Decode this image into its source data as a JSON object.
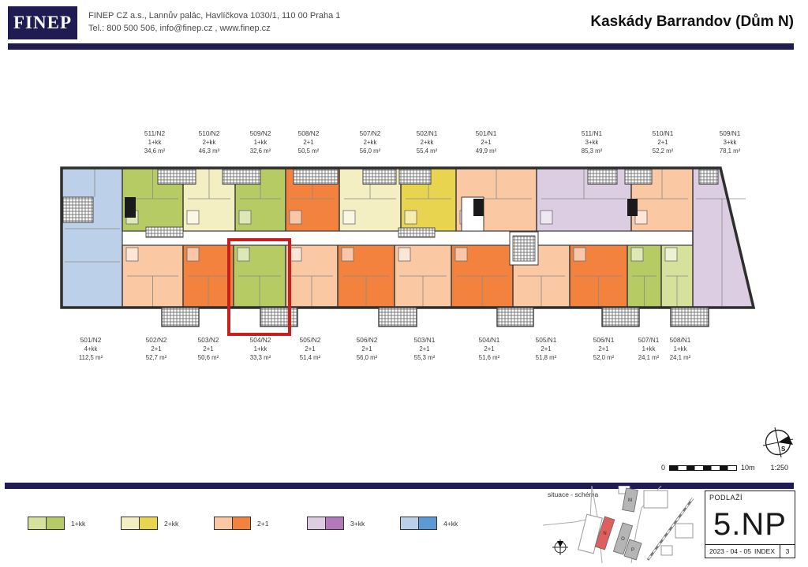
{
  "header": {
    "logo": "FINEP",
    "address_line": "FINEP CZ a.s., Lannův palác, Havlíčkova 1030/1, 110 00 Praha 1",
    "contact_line": "Tel.: 800 500 506,  info@finep.cz , www.finep.cz",
    "title": "Kaskády Barrandov (Dům N)"
  },
  "plan": {
    "highlight_unit": "504/N2",
    "left_unit": {
      "id": "501/N2",
      "layout": "4+kk",
      "area": "112,5 m²",
      "color": "blue"
    },
    "top_units": [
      {
        "id": "511/N2",
        "layout": "1+kk",
        "area": "34,6 m²",
        "color": "green"
      },
      {
        "id": "510/N2",
        "layout": "2+kk",
        "area": "46,3 m²",
        "color": "yellowLight"
      },
      {
        "id": "509/N2",
        "layout": "1+kk",
        "area": "32,6 m²",
        "color": "green"
      },
      {
        "id": "508/N2",
        "layout": "2+1",
        "area": "50,5 m²",
        "color": "orange"
      },
      {
        "id": "507/N2",
        "layout": "2+kk",
        "area": "56,0 m²",
        "color": "yellowLight"
      },
      {
        "id": "502/N1",
        "layout": "2+kk",
        "area": "55,4 m²",
        "color": "yellowDark"
      },
      {
        "id": "501/N1",
        "layout": "2+1",
        "area": "49,9 m²",
        "color": "salmon"
      },
      {
        "id": "511/N1",
        "layout": "3+kk",
        "area": "85,3 m²",
        "color": "purple"
      },
      {
        "id": "510/N1",
        "layout": "2+1",
        "area": "52,2 m²",
        "color": "salmon"
      },
      {
        "id": "509/N1",
        "layout": "3+kk",
        "area": "78,1 m²",
        "color": "purple"
      }
    ],
    "bottom_units": [
      {
        "id": "502/N2",
        "layout": "2+1",
        "area": "52,7 m²",
        "color": "salmon"
      },
      {
        "id": "503/N2",
        "layout": "2+1",
        "area": "50,6 m²",
        "color": "orange"
      },
      {
        "id": "504/N2",
        "layout": "1+kk",
        "area": "33,3 m²",
        "color": "green"
      },
      {
        "id": "505/N2",
        "layout": "2+1",
        "area": "51,4 m²",
        "color": "salmon"
      },
      {
        "id": "506/N2",
        "layout": "2+1",
        "area": "56,0 m²",
        "color": "orange"
      },
      {
        "id": "503/N1",
        "layout": "2+1",
        "area": "55,3 m²",
        "color": "salmon"
      },
      {
        "id": "504/N1",
        "layout": "2+1",
        "area": "51,6 m²",
        "color": "orange"
      },
      {
        "id": "505/N1",
        "layout": "2+1",
        "area": "51,8 m²",
        "color": "salmon"
      },
      {
        "id": "506/N1",
        "layout": "2+1",
        "area": "52,0 m²",
        "color": "orange"
      },
      {
        "id": "507/N1",
        "layout": "1+kk",
        "area": "24,1 m²",
        "color": "green"
      },
      {
        "id": "508/N1",
        "layout": "1+kk",
        "area": "24,1 m²",
        "color": "greenLight"
      }
    ]
  },
  "legend": {
    "items": [
      {
        "label": "1+kk",
        "light": "#d6e29b",
        "dark": "#b6cb63"
      },
      {
        "label": "2+kk",
        "light": "#f4efc2",
        "dark": "#e9d44f"
      },
      {
        "label": "2+1",
        "light": "#fac8a2",
        "dark": "#f4823f"
      },
      {
        "label": "3+kk",
        "light": "#dccde3",
        "dark": "#b379b8"
      },
      {
        "label": "4+kk",
        "light": "#bdd0ea",
        "dark": "#5b9bd5"
      }
    ]
  },
  "footer": {
    "scale": {
      "zero": "0",
      "ten": "10m",
      "ratio": "1:250"
    },
    "compass_letter": "S",
    "situace_label": "situace - schéma",
    "site_buildings": {
      "m": "M",
      "n": "N",
      "o": "O",
      "p": "P"
    },
    "titleblock": {
      "podlazi_label": "PODLAŽÍ",
      "floor": "5.NP",
      "date": "2023 - 04 - 05",
      "index_label": "INDEX",
      "index_value": "3"
    }
  },
  "colors": {
    "navy": "#201c52",
    "highlight_red": "#c9201d",
    "wall": "#2e2e2e",
    "site_building_red": "#dd5f5f",
    "site_building_gray": "#b5b5b5",
    "unit_types": {
      "green": "#b6cb63",
      "greenLight": "#d6e29b",
      "yellowLight": "#f4efc2",
      "yellowDark": "#e9d44f",
      "salmon": "#fac8a2",
      "orange": "#f4823f",
      "purple": "#dccde3",
      "blue": "#bdd0ea"
    }
  }
}
